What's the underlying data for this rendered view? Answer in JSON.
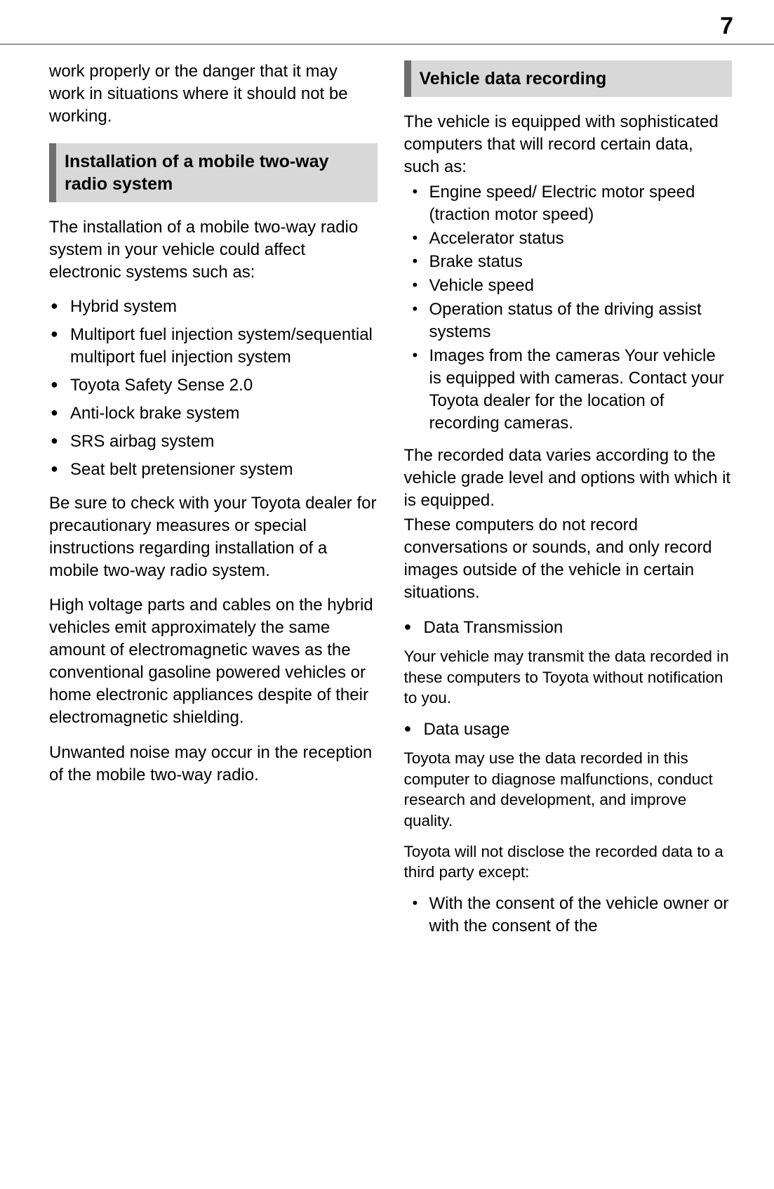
{
  "page_number": "7",
  "left": {
    "intro": "work properly or the danger that it may work in situations where it should not be working.",
    "section_title": "Installation of a mobile two-way radio system",
    "p1": "The installation of a mobile two-way radio system in your vehicle could affect electronic systems such as:",
    "bullets": [
      "Hybrid system",
      "Multiport fuel injection system/sequential multiport fuel injection system",
      "Toyota Safety Sense 2.0",
      "Anti-lock brake system",
      "SRS airbag system",
      "Seat belt pretensioner system"
    ],
    "p2": "Be sure to check with your Toyota dealer for precautionary measures or special instructions regarding installation of a mobile two-way radio system.",
    "p3": "High voltage parts and cables on the hybrid vehicles emit approximately the same amount of electromagnetic waves as the conventional gasoline powered vehicles or home electronic appliances despite of their electromagnetic shielding.",
    "p4": "Unwanted noise may occur in the reception of the mobile two-way radio."
  },
  "right": {
    "section_title": "Vehicle data recording",
    "p1": "The vehicle is equipped with sophisticated computers that will record certain data, such as:",
    "dots": [
      "Engine speed/ Electric motor speed (traction motor speed)",
      "Accelerator status",
      "Brake status",
      "Vehicle speed",
      "Operation status of the driving assist systems",
      "Images from the cameras Your vehicle is equipped with cameras. Contact your Toyota dealer for the location of recording cameras."
    ],
    "p2a": "The recorded data varies according to the vehicle grade level and options with which it is equipped.",
    "p2b": "These computers do not record conversations or sounds, and only record images outside of the vehicle in certain situations.",
    "b1": "Data Transmission",
    "sub1": "Your vehicle may transmit the data recorded in these computers to Toyota without notification to you.",
    "b2": "Data usage",
    "sub2": "Toyota may use the data recorded in this computer to diagnose malfunctions, conduct research and development, and improve quality.",
    "sub3": "Toyota will not disclose the recorded data to a third party except:",
    "dots2": [
      "With the consent of the vehicle owner or with the consent of the"
    ]
  }
}
